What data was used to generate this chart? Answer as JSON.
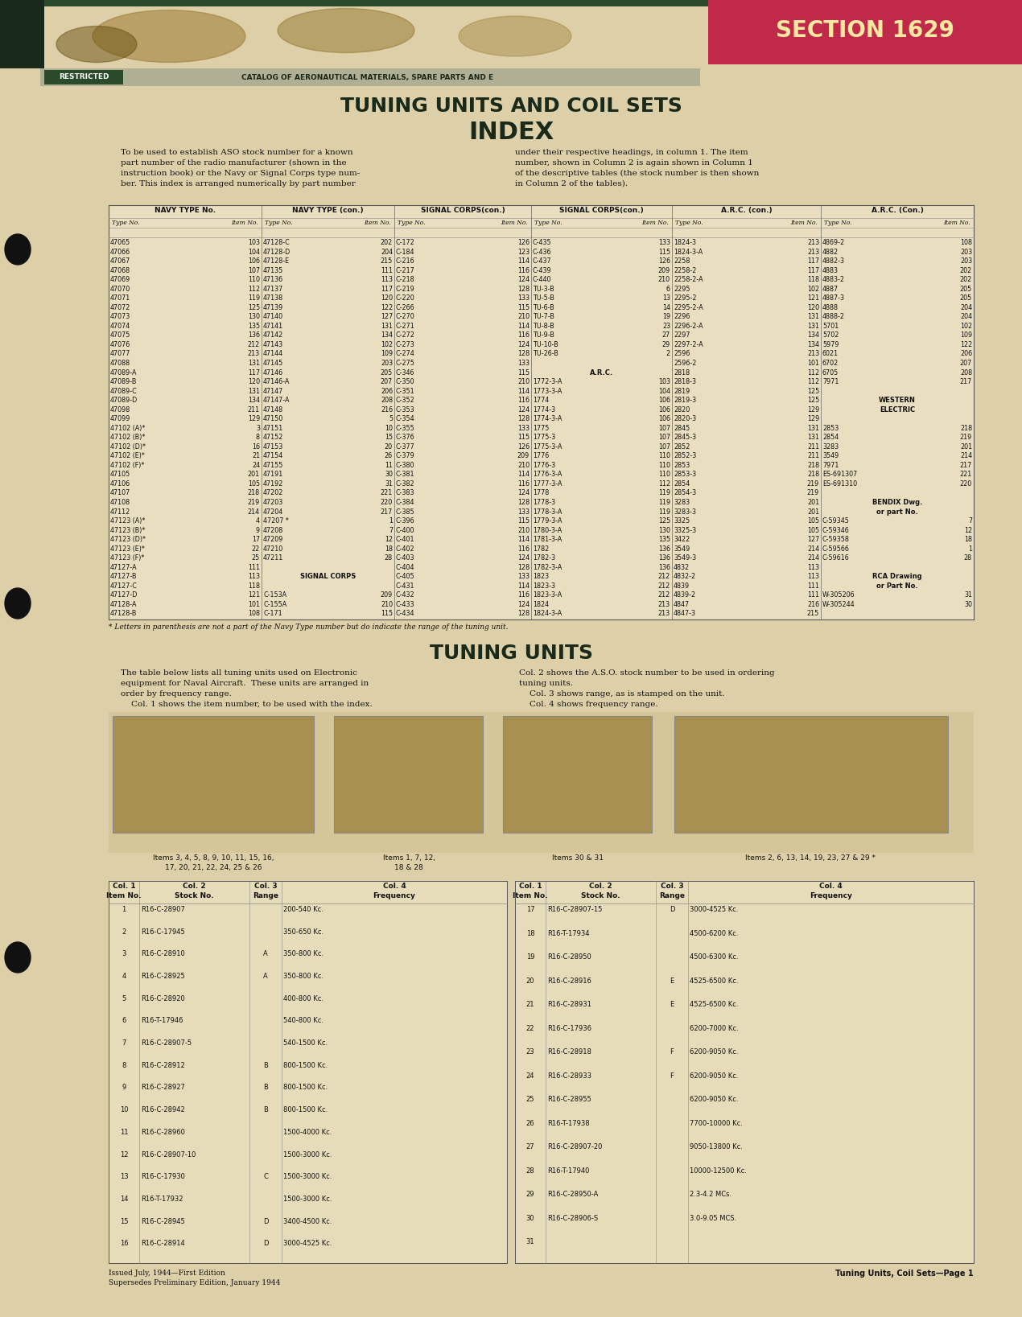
{
  "bg_color": "#d4c49a",
  "page_bg": "#ddd0a8",
  "section_bg": "#c0294a",
  "section_text": "SECTION 1629",
  "restricted_bg": "#2a4a2a",
  "restricted_text": "RESTRICTED",
  "banner_bg": "#9a9a88",
  "header_catalog": "CATALOG OF AERONAUTICAL MATERIALS, SPARE PARTS AND E",
  "title1": "TUNING UNITS AND COIL SETS",
  "title2": "INDEX",
  "intro_left": "To be used to establish ASO stock number for a known\npart number of the radio manufacturer (shown in the\ninstruction book) or the Navy or Signal Corps type num-\nber. This index is arranged numerically by part number",
  "intro_right": "under their respective headings, in column 1. The item\nnumber, shown in Column 2 is again shown in Column 1\nof the descriptive tables (the stock number is then shown\nin Column 2 of the tables).",
  "index_headers": [
    "NAVY TYPE No.",
    "NAVY TYPE (con.)",
    "SIGNAL CORPS(con.)",
    "SIGNAL CORPS(con.)",
    "A.R.C. (con.)",
    "A.R.C. (Con.)"
  ],
  "col1_data": [
    [
      "47065",
      "103"
    ],
    [
      "47066",
      "104"
    ],
    [
      "47067",
      "106"
    ],
    [
      "47068",
      "107"
    ],
    [
      "47069",
      "110"
    ],
    [
      "47070",
      "112"
    ],
    [
      "47071",
      "119"
    ],
    [
      "47072",
      "125"
    ],
    [
      "47073",
      "130"
    ],
    [
      "47074",
      "135"
    ],
    [
      "47075",
      "136"
    ],
    [
      "47076",
      "212"
    ],
    [
      "47077",
      "213"
    ],
    [
      "47088",
      "131"
    ],
    [
      "47089-A",
      "117"
    ],
    [
      "47089-B",
      "120"
    ],
    [
      "47089-C",
      "131"
    ],
    [
      "47089-D",
      "134"
    ],
    [
      "47098",
      "211"
    ],
    [
      "47099",
      "129"
    ],
    [
      "47102 (A)*",
      "3"
    ],
    [
      "47102 (B)*",
      "8"
    ],
    [
      "47102 (D)*",
      "16"
    ],
    [
      "47102 (E)*",
      "21"
    ],
    [
      "47102 (F)*",
      "24"
    ],
    [
      "47105",
      "201"
    ],
    [
      "47106",
      "105"
    ],
    [
      "47107",
      "218"
    ],
    [
      "47108",
      "219"
    ],
    [
      "47112",
      "214"
    ],
    [
      "47123 (A)*",
      "4"
    ],
    [
      "47123 (B)*",
      "9"
    ],
    [
      "47123 (D)*",
      "17"
    ],
    [
      "47123 (E)*",
      "22"
    ],
    [
      "47123 (F)*",
      "25"
    ],
    [
      "47127-A",
      "111"
    ],
    [
      "47127-B",
      "113"
    ],
    [
      "47127-C",
      "118"
    ],
    [
      "47127-D",
      "121"
    ],
    [
      "47128-A",
      "101"
    ],
    [
      "47128-B",
      "108"
    ]
  ],
  "col2_data": [
    [
      "47128-C",
      "202"
    ],
    [
      "47128-D",
      "204"
    ],
    [
      "47128-E",
      "215"
    ],
    [
      "47135",
      "111"
    ],
    [
      "47136",
      "113"
    ],
    [
      "47137",
      "117"
    ],
    [
      "47138",
      "120"
    ],
    [
      "47139",
      "122"
    ],
    [
      "47140",
      "127"
    ],
    [
      "47141",
      "131"
    ],
    [
      "47142",
      "134"
    ],
    [
      "47143",
      "102"
    ],
    [
      "47144",
      "109"
    ],
    [
      "47145",
      "203"
    ],
    [
      "47146",
      "205"
    ],
    [
      "47146-A",
      "207"
    ],
    [
      "47147",
      "206"
    ],
    [
      "47147-A",
      "208"
    ],
    [
      "47148",
      "216"
    ],
    [
      "47150",
      "5"
    ],
    [
      "47151",
      "10"
    ],
    [
      "47152",
      "15"
    ],
    [
      "47153",
      "20"
    ],
    [
      "47154",
      "26"
    ],
    [
      "47155",
      "11"
    ],
    [
      "47191",
      "30"
    ],
    [
      "47192",
      "31"
    ],
    [
      "47202",
      "221"
    ],
    [
      "47203",
      "220"
    ],
    [
      "47204",
      "217"
    ],
    [
      "47207 *",
      "1"
    ],
    [
      "47208",
      "7"
    ],
    [
      "47209",
      "12"
    ],
    [
      "47210",
      "18"
    ],
    [
      "47211",
      "28"
    ],
    [
      "",
      ""
    ],
    [
      "SIGNAL CORPS",
      ""
    ],
    [
      "",
      ""
    ],
    [
      "C-153A",
      "209"
    ],
    [
      "C-155A",
      "210"
    ],
    [
      "C-171",
      "115"
    ]
  ],
  "col3_data": [
    [
      "C-172",
      "126"
    ],
    [
      "C-184",
      "123"
    ],
    [
      "C-216",
      "114"
    ],
    [
      "C-217",
      "116"
    ],
    [
      "C-218",
      "124"
    ],
    [
      "C-219",
      "128"
    ],
    [
      "C-220",
      "133"
    ],
    [
      "C-266",
      "115"
    ],
    [
      "C-270",
      "210"
    ],
    [
      "C-271",
      "114"
    ],
    [
      "C-272",
      "116"
    ],
    [
      "C-273",
      "124"
    ],
    [
      "C-274",
      "128"
    ],
    [
      "C-275",
      "133"
    ],
    [
      "C-346",
      "115"
    ],
    [
      "C-350",
      "210"
    ],
    [
      "C-351",
      "114"
    ],
    [
      "C-352",
      "116"
    ],
    [
      "C-353",
      "124"
    ],
    [
      "C-354",
      "128"
    ],
    [
      "C-355",
      "133"
    ],
    [
      "C-376",
      "115"
    ],
    [
      "C-377",
      "126"
    ],
    [
      "C-379",
      "209"
    ],
    [
      "C-380",
      "210"
    ],
    [
      "C-381",
      "114"
    ],
    [
      "C-382",
      "116"
    ],
    [
      "C-383",
      "124"
    ],
    [
      "C-384",
      "128"
    ],
    [
      "C-385",
      "133"
    ],
    [
      "C-396",
      "115"
    ],
    [
      "C-400",
      "210"
    ],
    [
      "C-401",
      "114"
    ],
    [
      "C-402",
      "116"
    ],
    [
      "C-403",
      "124"
    ],
    [
      "C-404",
      "128"
    ],
    [
      "C-405",
      "133"
    ],
    [
      "C-431",
      "114"
    ],
    [
      "C-432",
      "116"
    ],
    [
      "C-433",
      "124"
    ],
    [
      "C-434",
      "128"
    ]
  ],
  "col4_data": [
    [
      "C-435",
      "133"
    ],
    [
      "C-436",
      "115"
    ],
    [
      "C-437",
      "126"
    ],
    [
      "C-439",
      "209"
    ],
    [
      "C-440",
      "210"
    ],
    [
      "TU-3-B",
      "6"
    ],
    [
      "TU-5-B",
      "13"
    ],
    [
      "TU-6-B",
      "14"
    ],
    [
      "TU-7-B",
      "19"
    ],
    [
      "TU-8-B",
      "23"
    ],
    [
      "TU-9-B",
      "27"
    ],
    [
      "TU-10-B",
      "29"
    ],
    [
      "TU-26-B",
      "2"
    ],
    [
      "",
      ""
    ],
    [
      "A.R.C.",
      ""
    ],
    [
      "1772-3-A",
      "103"
    ],
    [
      "1773-3-A",
      "104"
    ],
    [
      "1774",
      "106"
    ],
    [
      "1774-3",
      "106"
    ],
    [
      "1774-3-A",
      "106"
    ],
    [
      "1775",
      "107"
    ],
    [
      "1775-3",
      "107"
    ],
    [
      "1775-3-A",
      "107"
    ],
    [
      "1776",
      "110"
    ],
    [
      "1776-3",
      "110"
    ],
    [
      "1776-3-A",
      "110"
    ],
    [
      "1777-3-A",
      "112"
    ],
    [
      "1778",
      "119"
    ],
    [
      "1778-3",
      "119"
    ],
    [
      "1778-3-A",
      "119"
    ],
    [
      "1779-3-A",
      "125"
    ],
    [
      "1780-3-A",
      "130"
    ],
    [
      "1781-3-A",
      "135"
    ],
    [
      "1782",
      "136"
    ],
    [
      "1782-3",
      "136"
    ],
    [
      "1782-3-A",
      "136"
    ],
    [
      "1823",
      "212"
    ],
    [
      "1823-3",
      "212"
    ],
    [
      "1823-3-A",
      "212"
    ],
    [
      "1824",
      "213"
    ],
    [
      "1824-3-A",
      "213"
    ]
  ],
  "col5_data": [
    [
      "1824-3",
      "213"
    ],
    [
      "1824-3-A",
      "213"
    ],
    [
      "2258",
      "117"
    ],
    [
      "2258-2",
      "117"
    ],
    [
      "2258-2-A",
      "118"
    ],
    [
      "2295",
      "102"
    ],
    [
      "2295-2",
      "121"
    ],
    [
      "2295-2-A",
      "120"
    ],
    [
      "2296",
      "131"
    ],
    [
      "2296-2-A",
      "131"
    ],
    [
      "2297",
      "134"
    ],
    [
      "2297-2-A",
      "134"
    ],
    [
      "2596",
      "213"
    ],
    [
      "2596-2",
      "101"
    ],
    [
      "2818",
      "112"
    ],
    [
      "2818-3",
      "112"
    ],
    [
      "2819",
      "125"
    ],
    [
      "2819-3",
      "125"
    ],
    [
      "2820",
      "129"
    ],
    [
      "2820-3",
      "129"
    ],
    [
      "2845",
      "131"
    ],
    [
      "2845-3",
      "131"
    ],
    [
      "2852",
      "211"
    ],
    [
      "2852-3",
      "211"
    ],
    [
      "2853",
      "218"
    ],
    [
      "2853-3",
      "218"
    ],
    [
      "2854",
      "219"
    ],
    [
      "2854-3",
      "219"
    ],
    [
      "3283",
      "201"
    ],
    [
      "3283-3",
      "201"
    ],
    [
      "3325",
      "105"
    ],
    [
      "3325-3",
      "105"
    ],
    [
      "3422",
      "127"
    ],
    [
      "3549",
      "214"
    ],
    [
      "3549-3",
      "214"
    ],
    [
      "4832",
      "113"
    ],
    [
      "4832-2",
      "113"
    ],
    [
      "4839",
      "111"
    ],
    [
      "4839-2",
      "111"
    ],
    [
      "4847",
      "216"
    ],
    [
      "4847-3",
      "215"
    ]
  ],
  "col6_data": [
    [
      "4869-2",
      "108"
    ],
    [
      "4882",
      "203"
    ],
    [
      "4882-3",
      "203"
    ],
    [
      "4883",
      "202"
    ],
    [
      "4883-2",
      "202"
    ],
    [
      "4887",
      "205"
    ],
    [
      "4887-3",
      "205"
    ],
    [
      "4888",
      "204"
    ],
    [
      "4888-2",
      "204"
    ],
    [
      "5701",
      "102"
    ],
    [
      "5702",
      "109"
    ],
    [
      "5979",
      "122"
    ],
    [
      "6021",
      "206"
    ],
    [
      "6702",
      "207"
    ],
    [
      "6705",
      "208"
    ],
    [
      "7971",
      "217"
    ],
    [
      "",
      ""
    ],
    [
      "WESTERN",
      ""
    ],
    [
      "ELECTRIC",
      ""
    ],
    [
      "",
      ""
    ],
    [
      "2853",
      "218"
    ],
    [
      "2854",
      "219"
    ],
    [
      "3283",
      "201"
    ],
    [
      "3549",
      "214"
    ],
    [
      "7971",
      "217"
    ],
    [
      "ES-691307",
      "221"
    ],
    [
      "ES-691310",
      "220"
    ],
    [
      "",
      ""
    ],
    [
      "BENDIX Dwg.",
      ""
    ],
    [
      "or part No.",
      ""
    ],
    [
      "C-59345",
      "7"
    ],
    [
      "C-59346",
      "12"
    ],
    [
      "C-59358",
      "18"
    ],
    [
      "C-59566",
      "1"
    ],
    [
      "C-59616",
      "28"
    ],
    [
      "",
      ""
    ],
    [
      "RCA Drawing",
      ""
    ],
    [
      "or Part No.",
      ""
    ],
    [
      "W-305206",
      "31"
    ],
    [
      "W-305244",
      "30"
    ],
    [
      "",
      ""
    ]
  ],
  "footnote": "* Letters in parenthesis are not a part of the Navy Type number but do indicate the range of the tuning unit.",
  "tuning_title": "TUNING UNITS",
  "tuning_left": "The table below lists all tuning units used on Electronic\nequipment for Naval Aircraft.  These units are arranged in\norder by frequency range.\n    Col. 1 shows the item number, to be used with the index.",
  "tuning_right": "Col. 2 shows the A.S.O. stock number to be used in ordering\ntuning units.\n    Col. 3 shows range, as is stamped on the unit.\n    Col. 4 shows frequency range.",
  "img_label1": "Items 3, 4, 5, 8, 9, 10, 11, 15, 16,\n17, 20, 21, 22, 24, 25 & 26",
  "img_label2": "Items 1, 7, 12,\n18 & 28",
  "img_label3": "Items 30 & 31",
  "img_label4": "Items 2, 6, 13, 14, 19, 23, 27 & 29 *",
  "left_table": [
    [
      "1",
      "R16-C-28907",
      "",
      "200-540 Kc."
    ],
    [
      "2",
      "R16-C-17945",
      "",
      "350-650 Kc."
    ],
    [
      "3",
      "R16-C-28910",
      "A",
      "350-800 Kc."
    ],
    [
      "4",
      "R16-C-28925",
      "A",
      "350-800 Kc."
    ],
    [
      "5",
      "R16-C-28920",
      "",
      "400-800 Kc."
    ],
    [
      "6",
      "R16-T-17946",
      "",
      "540-800 Kc."
    ],
    [
      "7",
      "R16-C-28907-5",
      "",
      "540-1500 Kc."
    ],
    [
      "8",
      "R16-C-28912",
      "B",
      "800-1500 Kc."
    ],
    [
      "9",
      "R16-C-28927",
      "B",
      "800-1500 Kc."
    ],
    [
      "10",
      "R16-C-28942",
      "B",
      "800-1500 Kc."
    ],
    [
      "11",
      "R16-C-28960",
      "",
      "1500-4000 Kc."
    ],
    [
      "12",
      "R16-C-28907-10",
      "",
      "1500-3000 Kc."
    ],
    [
      "13",
      "R16-C-17930",
      "C",
      "1500-3000 Kc."
    ],
    [
      "14",
      "R16-T-17932",
      "",
      "1500-3000 Kc."
    ],
    [
      "15",
      "R16-C-28945",
      "D",
      "3400-4500 Kc."
    ],
    [
      "16",
      "R16-C-28914",
      "D",
      "3000-4525 Kc."
    ]
  ],
  "right_table": [
    [
      "17",
      "R16-C-28907-15",
      "D",
      "3000-4525 Kc."
    ],
    [
      "18",
      "R16-T-17934",
      "",
      "4500-6200 Kc."
    ],
    [
      "19",
      "R16-C-28950",
      "",
      "4500-6300 Kc."
    ],
    [
      "20",
      "R16-C-28916",
      "E",
      "4525-6500 Kc."
    ],
    [
      "21",
      "R16-C-28931",
      "E",
      "4525-6500 Kc."
    ],
    [
      "22",
      "R16-C-17936",
      "",
      "6200-7000 Kc."
    ],
    [
      "23",
      "R16-C-28918",
      "F",
      "6200-9050 Kc."
    ],
    [
      "24",
      "R16-C-28933",
      "F",
      "6200-9050 Kc."
    ],
    [
      "25",
      "R16-C-28955",
      "",
      "6200-9050 Kc."
    ],
    [
      "26",
      "R16-T-17938",
      "",
      "7700-10000 Kc."
    ],
    [
      "27",
      "R16-C-28907-20",
      "",
      "9050-13800 Kc."
    ],
    [
      "28",
      "R16-T-17940",
      "",
      "10000-12500 Kc."
    ],
    [
      "29",
      "R16-C-28950-A",
      "",
      "2.3-4.2 MCs."
    ],
    [
      "30",
      "R16-C-28906-S",
      "",
      "3.0-9.05 MCS."
    ],
    [
      "31",
      "",
      "",
      ""
    ]
  ],
  "issued": "Issued July, 1944—First Edition\nSupersedes Preliminary Edition, January 1944",
  "footer": "Tuning Units, Coil Sets—Page 1"
}
